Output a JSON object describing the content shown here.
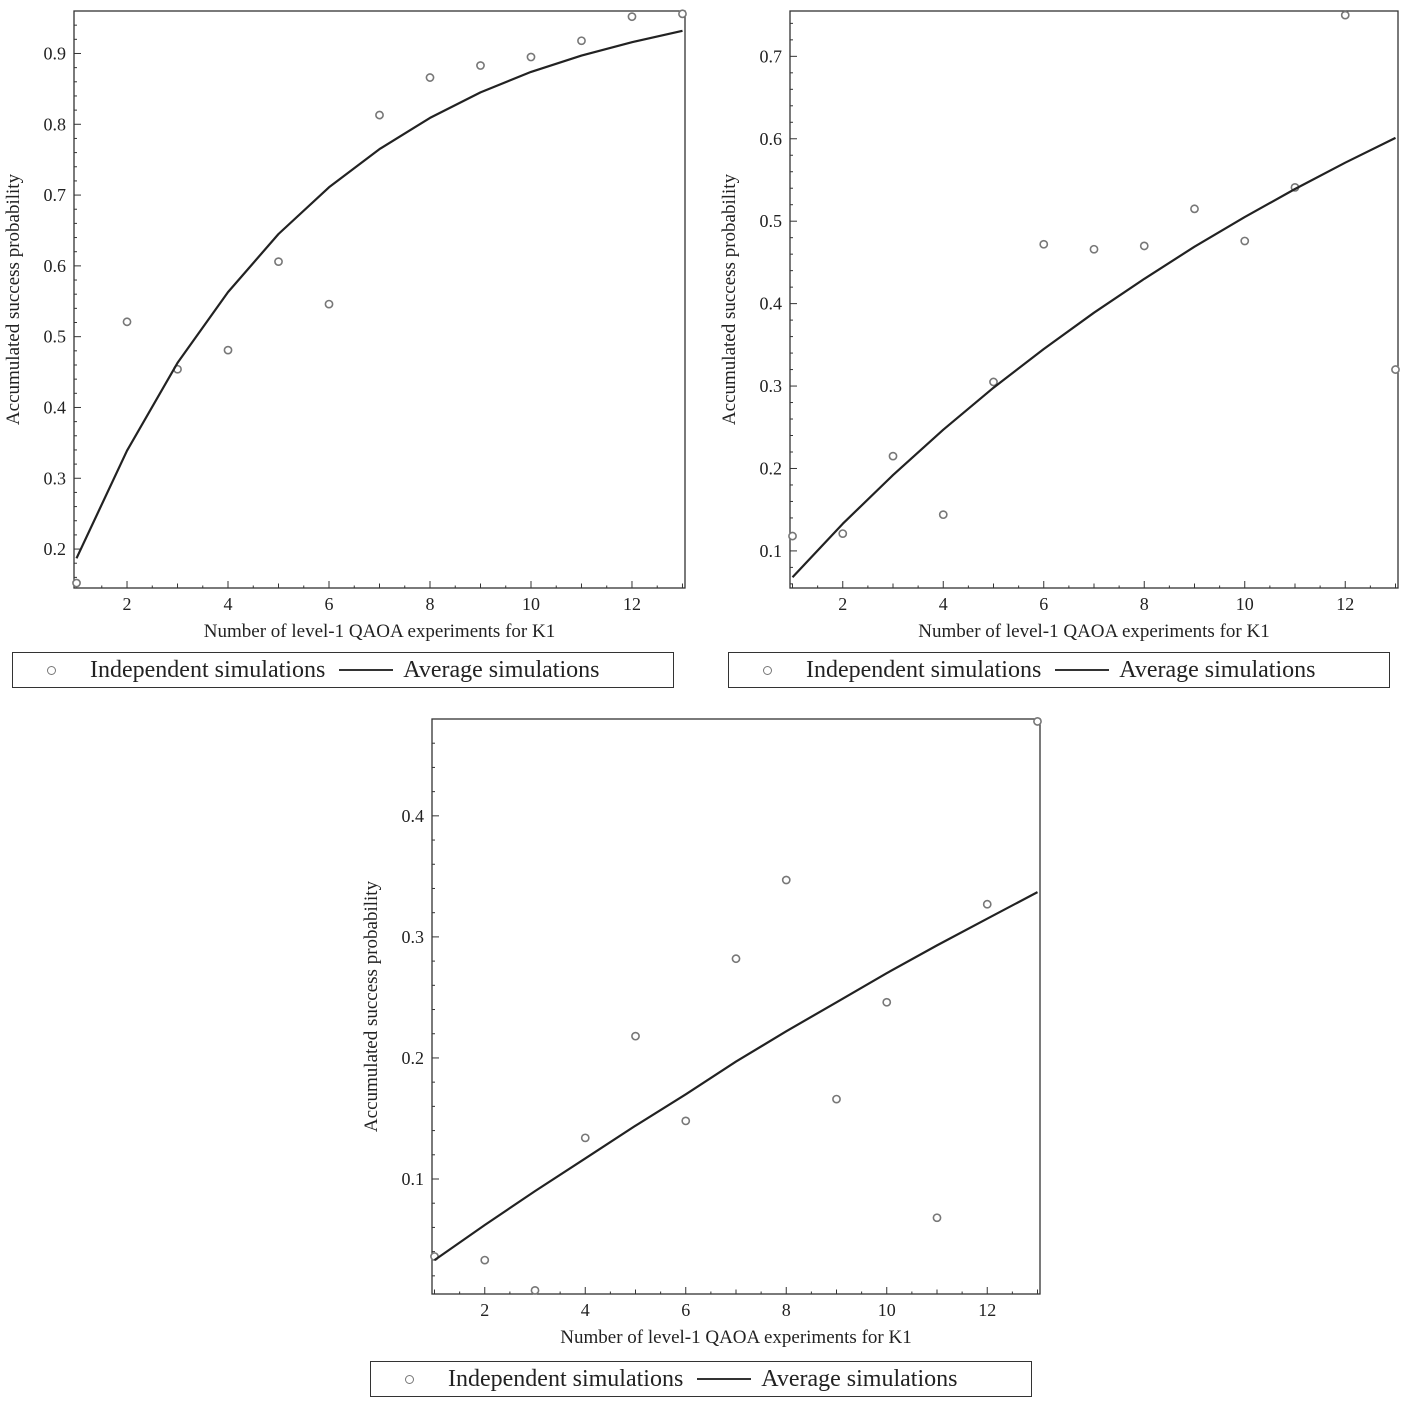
{
  "chart_data": [
    {
      "type": "scatter",
      "xlabel": "Number of level-1 QAOA experiments for K1",
      "ylabel": "Accumulated success probability",
      "xlim": [
        0.95,
        13.05
      ],
      "ylim": [
        0.145,
        0.96
      ],
      "xticks": [
        2,
        4,
        6,
        8,
        10,
        12
      ],
      "yticks": [
        0.2,
        0.3,
        0.4,
        0.5,
        0.6,
        0.7,
        0.8,
        0.9
      ],
      "grid": false,
      "legend_position": "bottom",
      "series": [
        {
          "name": "Independent simulations",
          "style": "points",
          "x": [
            1,
            2,
            3,
            4,
            5,
            6,
            7,
            8,
            9,
            10,
            11,
            12,
            13
          ],
          "y": [
            0.152,
            0.521,
            0.454,
            0.481,
            0.606,
            0.546,
            0.813,
            0.866,
            0.883,
            0.895,
            0.918,
            0.952,
            0.956
          ]
        },
        {
          "name": "Average simulations",
          "style": "line",
          "x": [
            1,
            2,
            3,
            4,
            5,
            6,
            7,
            8,
            9,
            10,
            11,
            12,
            13
          ],
          "y": [
            0.187,
            0.339,
            0.463,
            0.563,
            0.645,
            0.711,
            0.765,
            0.809,
            0.845,
            0.874,
            0.897,
            0.916,
            0.932
          ]
        }
      ]
    },
    {
      "type": "scatter",
      "xlabel": "Number of level-1 QAOA experiments for K1",
      "ylabel": "Accumulated success probability",
      "xlim": [
        0.95,
        13.05
      ],
      "ylim": [
        0.055,
        0.755
      ],
      "xticks": [
        2,
        4,
        6,
        8,
        10,
        12
      ],
      "yticks": [
        0.1,
        0.2,
        0.3,
        0.4,
        0.5,
        0.6,
        0.7
      ],
      "grid": false,
      "legend_position": "bottom",
      "series": [
        {
          "name": "Independent simulations",
          "style": "points",
          "x": [
            1,
            2,
            3,
            4,
            5,
            6,
            7,
            8,
            9,
            10,
            11,
            12,
            13
          ],
          "y": [
            0.118,
            0.121,
            0.215,
            0.144,
            0.305,
            0.472,
            0.466,
            0.47,
            0.515,
            0.476,
            0.541,
            0.75,
            0.32
          ]
        },
        {
          "name": "Average simulations",
          "style": "line",
          "x": [
            1,
            2,
            3,
            4,
            5,
            6,
            7,
            8,
            9,
            10,
            11,
            12,
            13
          ],
          "y": [
            0.068,
            0.133,
            0.192,
            0.247,
            0.298,
            0.345,
            0.389,
            0.43,
            0.469,
            0.505,
            0.539,
            0.571,
            0.601
          ]
        }
      ]
    },
    {
      "type": "scatter",
      "xlabel": "Number of level-1 QAOA experiments for K1",
      "ylabel": "Accumulated success probability",
      "xlim": [
        0.95,
        13.05
      ],
      "ylim": [
        0.005,
        0.48
      ],
      "xticks": [
        2,
        4,
        6,
        8,
        10,
        12
      ],
      "yticks": [
        0.1,
        0.2,
        0.3,
        0.4
      ],
      "grid": false,
      "legend_position": "bottom",
      "series": [
        {
          "name": "Independent simulations",
          "style": "points",
          "x": [
            1,
            2,
            3,
            4,
            5,
            6,
            7,
            8,
            9,
            10,
            11,
            12,
            13
          ],
          "y": [
            0.036,
            0.033,
            0.008,
            0.134,
            0.218,
            0.148,
            0.282,
            0.347,
            0.166,
            0.246,
            0.068,
            0.327,
            0.478
          ]
        },
        {
          "name": "Average simulations",
          "style": "line",
          "x": [
            1,
            2,
            3,
            4,
            5,
            6,
            7,
            8,
            9,
            10,
            11,
            12,
            13
          ],
          "y": [
            0.033,
            0.062,
            0.09,
            0.117,
            0.144,
            0.17,
            0.197,
            0.222,
            0.246,
            0.27,
            0.293,
            0.315,
            0.337
          ]
        }
      ]
    }
  ]
}
